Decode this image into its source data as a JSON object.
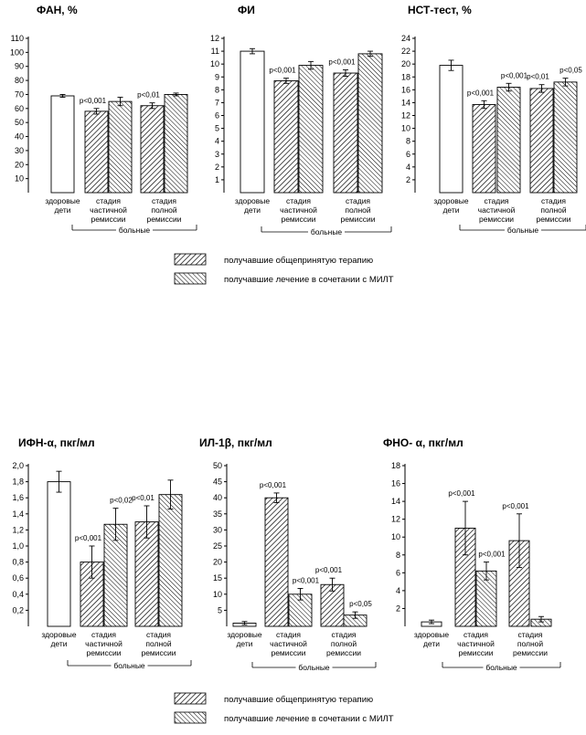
{
  "chart_data": [
    {
      "type": "bar",
      "title": "ФАН, %",
      "ylim": [
        0,
        110
      ],
      "yticks": [
        10,
        20,
        30,
        40,
        50,
        60,
        70,
        80,
        90,
        100,
        110
      ],
      "group_label": "больные",
      "bars": [
        {
          "category": [
            "здоровые",
            "дети"
          ],
          "series": 0,
          "value": 69,
          "error": 1,
          "annotation": ""
        },
        {
          "category": [
            "стадия",
            "частичной",
            "ремиссии"
          ],
          "series": 1,
          "value": 58,
          "error": 2,
          "annotation": "р<0,001"
        },
        {
          "category": [
            "стадия",
            "частичной",
            "ремиссии"
          ],
          "series": 2,
          "value": 65,
          "error": 3,
          "annotation": ""
        },
        {
          "category": [
            "стадия",
            "полной",
            "ремиссии"
          ],
          "series": 1,
          "value": 62,
          "error": 2,
          "annotation": "р<0,01"
        },
        {
          "category": [
            "стадия",
            "полной",
            "ремиссии"
          ],
          "series": 2,
          "value": 70,
          "error": 1,
          "annotation": ""
        }
      ]
    },
    {
      "type": "bar",
      "title": "ФИ",
      "ylim": [
        0,
        12
      ],
      "yticks": [
        1,
        2,
        3,
        4,
        5,
        6,
        7,
        8,
        9,
        10,
        11,
        12
      ],
      "group_label": "больные",
      "bars": [
        {
          "category": [
            "здоровые",
            "дети"
          ],
          "series": 0,
          "value": 11,
          "error": 0.2,
          "annotation": ""
        },
        {
          "category": [
            "стадия",
            "частичной",
            "ремиссии"
          ],
          "series": 1,
          "value": 8.7,
          "error": 0.2,
          "annotation": "р<0,001"
        },
        {
          "category": [
            "стадия",
            "частичной",
            "ремиссии"
          ],
          "series": 2,
          "value": 9.9,
          "error": 0.3,
          "annotation": ""
        },
        {
          "category": [
            "стадия",
            "полной",
            "ремиссии"
          ],
          "series": 1,
          "value": 9.3,
          "error": 0.25,
          "annotation": "р<0,001"
        },
        {
          "category": [
            "стадия",
            "полной",
            "ремиссии"
          ],
          "series": 2,
          "value": 10.8,
          "error": 0.2,
          "annotation": ""
        }
      ]
    },
    {
      "type": "bar",
      "title": "НСТ-тест, %",
      "ylim": [
        0,
        24
      ],
      "yticks": [
        2,
        4,
        6,
        8,
        10,
        12,
        14,
        16,
        18,
        20,
        22,
        24
      ],
      "group_label": "больные",
      "bars": [
        {
          "category": [
            "здоровые",
            "дети"
          ],
          "series": 0,
          "value": 19.8,
          "error": 0.8,
          "annotation": ""
        },
        {
          "category": [
            "стадия",
            "частичной",
            "ремиссии"
          ],
          "series": 1,
          "value": 13.7,
          "error": 0.6,
          "annotation": "р<0,001"
        },
        {
          "category": [
            "стадия",
            "частичной",
            "ремиссии"
          ],
          "series": 2,
          "value": 16.4,
          "error": 0.6,
          "annotation": "р<0,001"
        },
        {
          "category": [
            "стадия",
            "полной",
            "ремиссии"
          ],
          "series": 1,
          "value": 16.2,
          "error": 0.6,
          "annotation": "р<0,01"
        },
        {
          "category": [
            "стадия",
            "полной",
            "ремиссии"
          ],
          "series": 2,
          "value": 17.2,
          "error": 0.6,
          "annotation": "р<0,05"
        }
      ]
    },
    {
      "type": "bar",
      "title": "ИФН-α, пкг/мл",
      "ylim": [
        0,
        2.0
      ],
      "yticks": [
        "0,2",
        "0,4",
        "0,6",
        "0,8",
        "1,0",
        "1,2",
        "1,4",
        "1,6",
        "1,8",
        "2,0"
      ],
      "group_label": "больные",
      "bars": [
        {
          "category": [
            "здоровые",
            "дети"
          ],
          "series": 0,
          "value": 1.8,
          "error": 0.13,
          "annotation": ""
        },
        {
          "category": [
            "стадия",
            "частичной",
            "ремиссии"
          ],
          "series": 1,
          "value": 0.8,
          "error": 0.2,
          "annotation": "р<0,001"
        },
        {
          "category": [
            "стадия",
            "частичной",
            "ремиссии"
          ],
          "series": 2,
          "value": 1.27,
          "error": 0.2,
          "annotation": "р<0,02"
        },
        {
          "category": [
            "стадия",
            "полной",
            "ремиссии"
          ],
          "series": 1,
          "value": 1.3,
          "error": 0.2,
          "annotation": "р<0,01"
        },
        {
          "category": [
            "стадия",
            "полной",
            "ремиссии"
          ],
          "series": 2,
          "value": 1.64,
          "error": 0.18,
          "annotation": ""
        }
      ]
    },
    {
      "type": "bar",
      "title": "ИЛ-1β, пкг/мл",
      "ylim": [
        0,
        50
      ],
      "yticks": [
        5,
        10,
        15,
        20,
        25,
        30,
        35,
        40,
        45,
        50
      ],
      "group_label": "больные",
      "bars": [
        {
          "category": [
            "здоровые",
            "дети"
          ],
          "series": 0,
          "value": 1,
          "error": 0.5,
          "annotation": ""
        },
        {
          "category": [
            "стадия",
            "частичной",
            "ремиссии"
          ],
          "series": 1,
          "value": 40,
          "error": 1.5,
          "annotation": "р<0,001"
        },
        {
          "category": [
            "стадия",
            "частичной",
            "ремиссии"
          ],
          "series": 2,
          "value": 10,
          "error": 1.8,
          "annotation": "р<0,001"
        },
        {
          "category": [
            "стадия",
            "полной",
            "ремиссии"
          ],
          "series": 1,
          "value": 13,
          "error": 2,
          "annotation": "р<0,001"
        },
        {
          "category": [
            "стадия",
            "полной",
            "ремиссии"
          ],
          "series": 2,
          "value": 3.5,
          "error": 1,
          "annotation": "р<0,05"
        }
      ]
    },
    {
      "type": "bar",
      "title": "ФНО- α, пкг/мл",
      "ylim": [
        0,
        18
      ],
      "yticks": [
        2,
        4,
        6,
        8,
        10,
        12,
        14,
        16,
        18
      ],
      "group_label": "больные",
      "bars": [
        {
          "category": [
            "здоровые",
            "дети"
          ],
          "series": 0,
          "value": 0.5,
          "error": 0.2,
          "annotation": ""
        },
        {
          "category": [
            "стадия",
            "частичной",
            "ремиссии"
          ],
          "series": 1,
          "value": 11,
          "error": 3,
          "annotation": "р<0,001"
        },
        {
          "category": [
            "стадия",
            "частичной",
            "ремиссии"
          ],
          "series": 2,
          "value": 6.2,
          "error": 1,
          "annotation": "р<0,001"
        },
        {
          "category": [
            "стадия",
            "полной",
            "ремиссии"
          ],
          "series": 1,
          "value": 9.6,
          "error": 3,
          "annotation": "р<0,001"
        },
        {
          "category": [
            "стадия",
            "полной",
            "ремиссии"
          ],
          "series": 2,
          "value": 0.8,
          "error": 0.3,
          "annotation": ""
        }
      ]
    }
  ],
  "legends": [
    [
      "получавшие общепринятую терапию",
      "получавшие лечение в сочетании с МИЛТ"
    ],
    [
      "получавшие общепринятую терапию",
      "получавшие лечение в сочетании с МИЛТ"
    ]
  ]
}
